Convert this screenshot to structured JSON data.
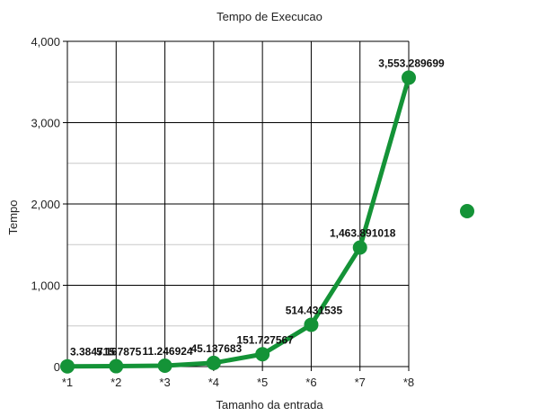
{
  "chart_data": {
    "type": "line",
    "title": "Tempo de Execucao",
    "xlabel": "Tamanho da entrada",
    "ylabel": "Tempo",
    "categories": [
      "*1",
      "*2",
      "*3",
      "*4",
      "*5",
      "*6",
      "*7",
      "*8"
    ],
    "series": [
      {
        "values": [
          3.384715,
          5.167875,
          11.246924,
          45.137683,
          151.727567,
          514.431535,
          1463.891018,
          3553.289699
        ],
        "data_labels": [
          "3.384715",
          "5.167875",
          "11.246924",
          "45.137683",
          "151.727567",
          "514.431535",
          "1,463.891018",
          "3,553.289699"
        ],
        "color": "#149337"
      }
    ],
    "ylim": [
      0,
      4000
    ],
    "yticks": [
      0,
      1000,
      2000,
      3000,
      4000
    ],
    "ytick_labels": [
      "0",
      "1,000",
      "2,000",
      "3,000",
      "4,000"
    ],
    "grid": true,
    "legend": "right",
    "legend_marker_color": "#149337"
  }
}
